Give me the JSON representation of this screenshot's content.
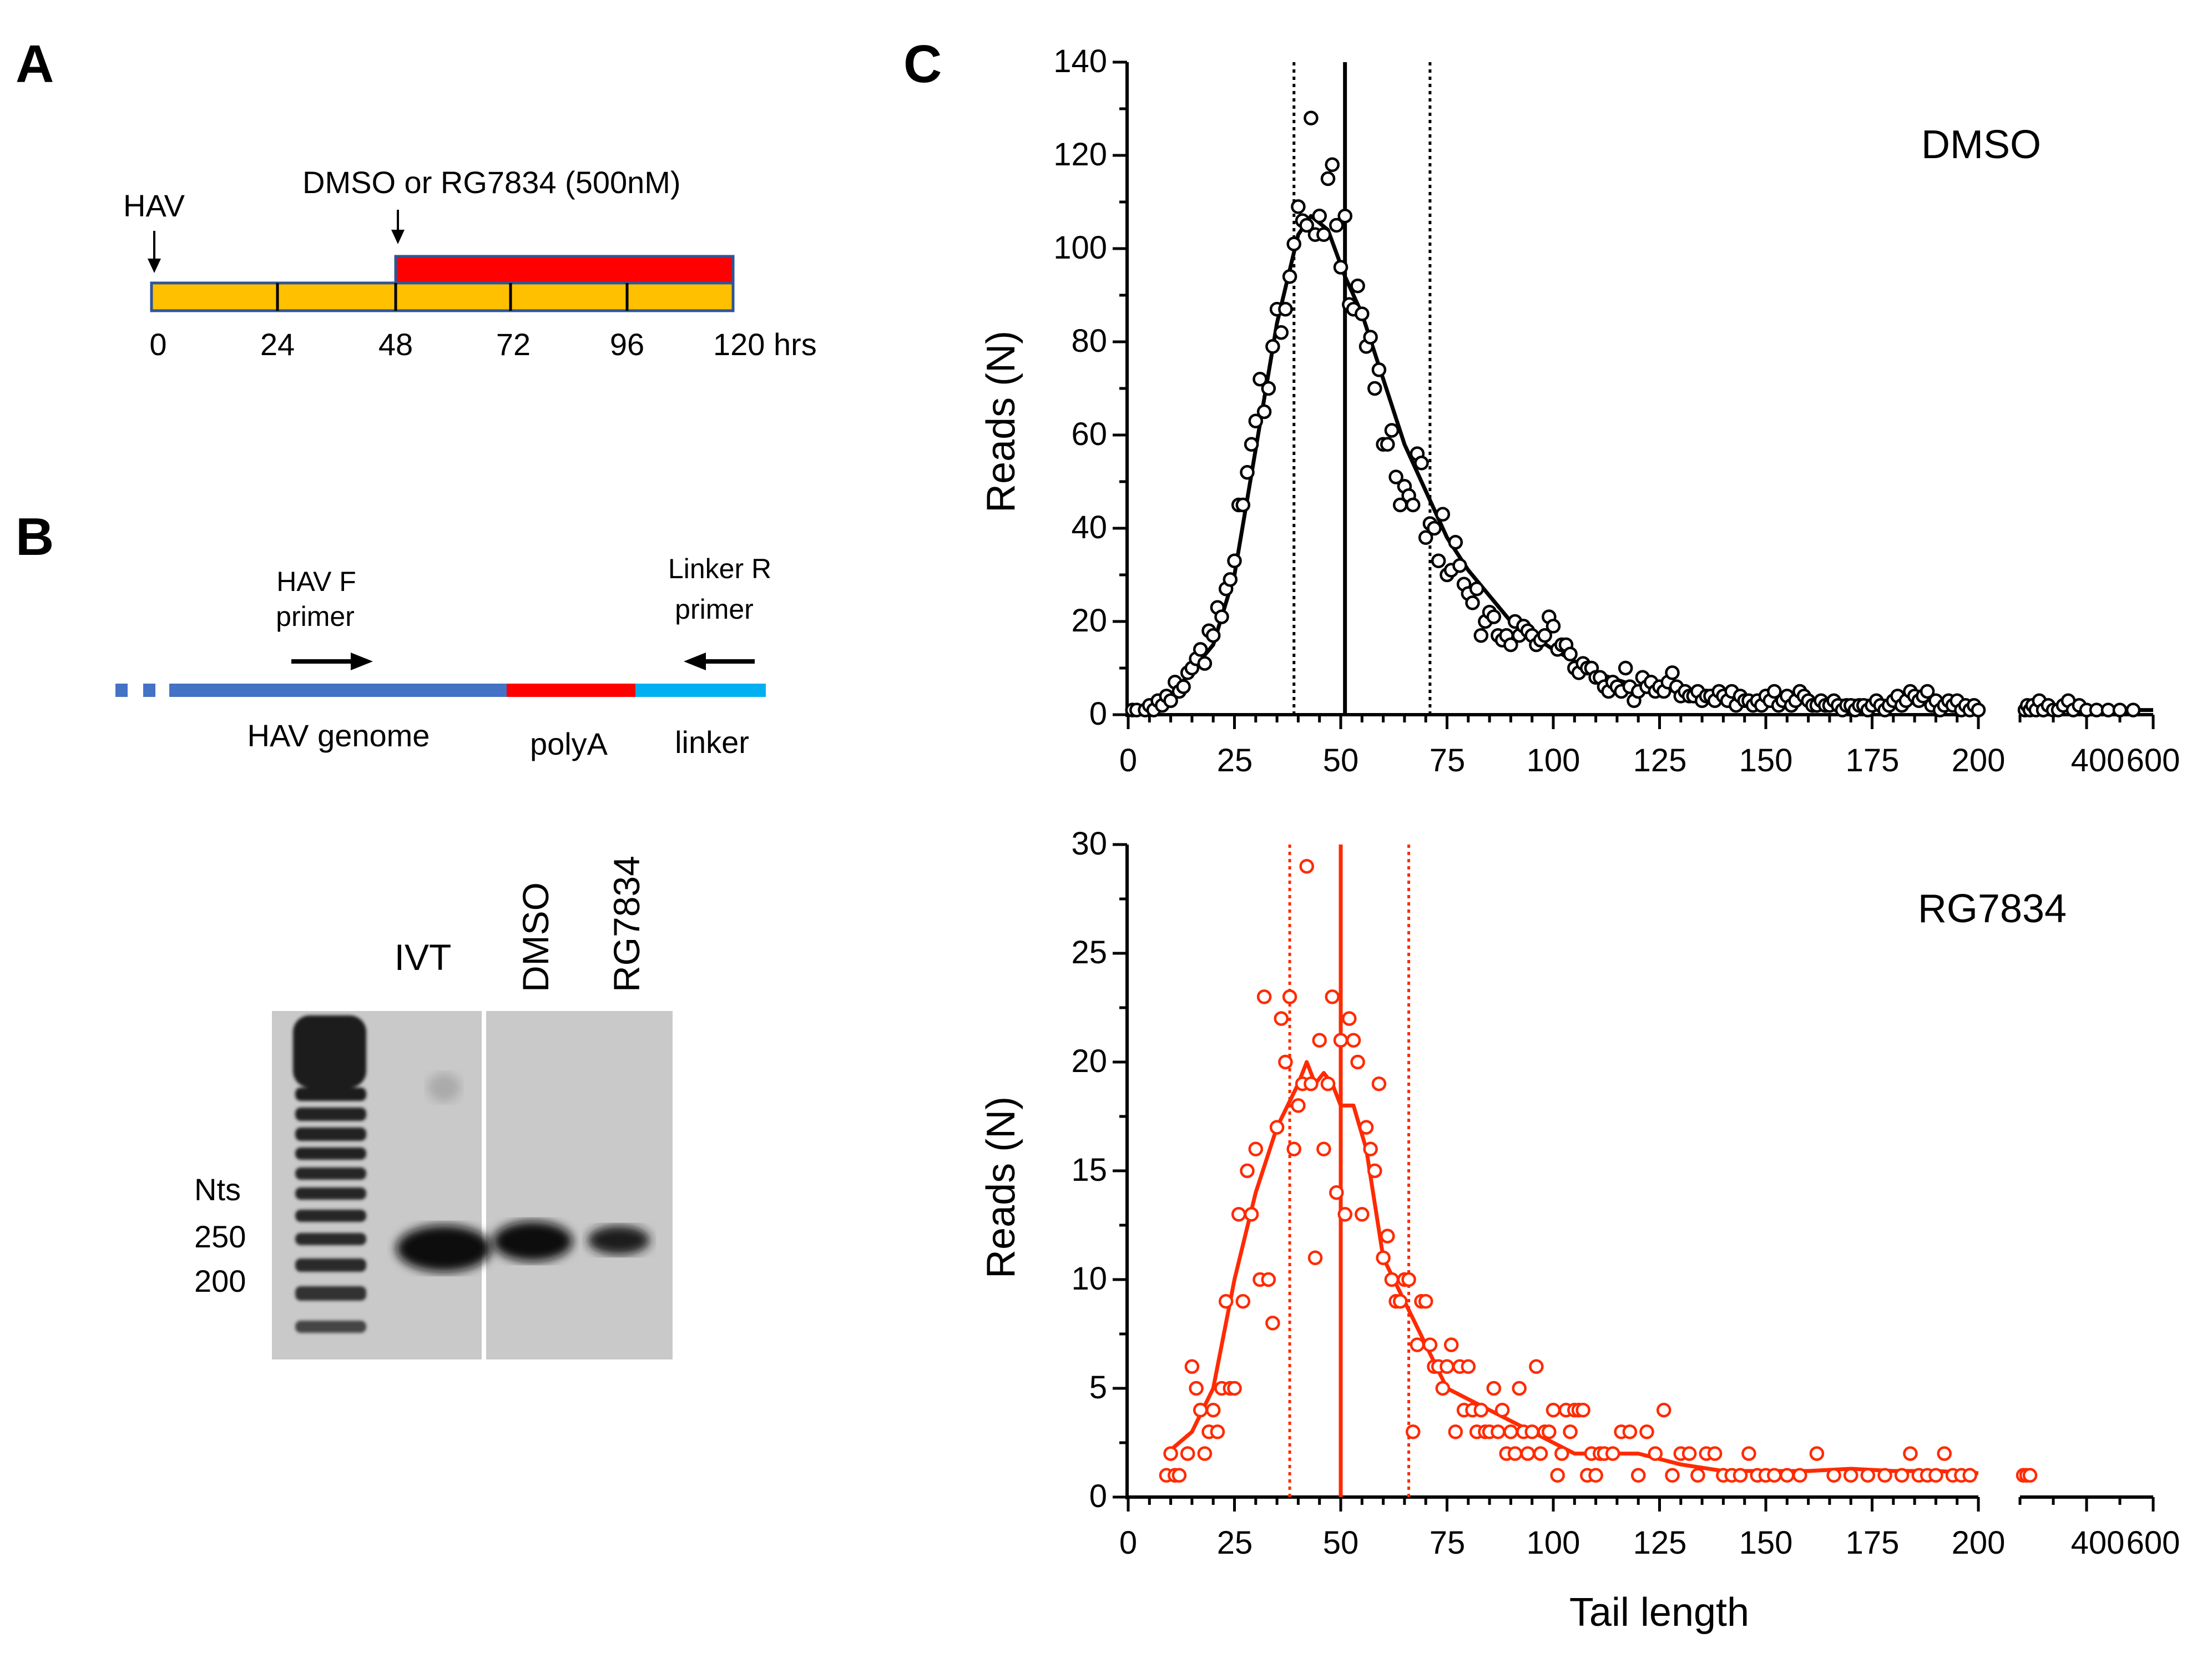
{
  "panels": {
    "a": "A",
    "b": "B",
    "c": "C"
  },
  "panel_a": {
    "hav_label": "HAV",
    "treatment_label": "DMSO or RG7834 (500nM)",
    "time_ticks": [
      "0",
      "24",
      "48",
      "72",
      "96"
    ],
    "time_end_label": "120 hrs",
    "time_values": [
      0,
      24,
      48,
      72,
      96,
      120
    ],
    "treatment_start_hr": 48,
    "colors": {
      "infection": "#FFC000",
      "treatment": "#FF0000",
      "frame": "#2F5597"
    }
  },
  "panel_b": {
    "hav_f_primer": [
      "HAV F",
      "primer"
    ],
    "linker_r_primer": [
      "Linker R",
      "primer"
    ],
    "segments": [
      "HAV genome",
      "polyA",
      "linker"
    ],
    "colors": {
      "genome": "#4472C4",
      "polya": "#FF0000",
      "linker": "#00B0F0"
    },
    "gel": {
      "lanes": [
        "IVT",
        "DMSO",
        "RG7834"
      ],
      "size_title": "Nts",
      "size_markers": [
        "250",
        "200"
      ]
    }
  },
  "chart_data": [
    {
      "type": "scatter",
      "title": "DMSO",
      "xlabel": "",
      "ylabel": "Reads (N)",
      "color": "#000000",
      "xlim": [
        0,
        200
      ],
      "xlim_break": [
        200,
        600
      ],
      "ylim": [
        0,
        140
      ],
      "x_ticks": [
        "0",
        "25",
        "50",
        "75",
        "100",
        "125",
        "150",
        "175",
        "200"
      ],
      "x_break_ticks": [
        "400",
        "600"
      ],
      "y_ticks": [
        "0",
        "20",
        "40",
        "60",
        "80",
        "100",
        "120",
        "140"
      ],
      "median": 51,
      "quartiles": [
        39,
        71
      ],
      "x": [
        1,
        2,
        4,
        5,
        6,
        7,
        8,
        9,
        10,
        11,
        12,
        13,
        14,
        15,
        16,
        17,
        18,
        19,
        20,
        21,
        22,
        23,
        24,
        25,
        26,
        27,
        28,
        29,
        30,
        31,
        32,
        33,
        34,
        35,
        36,
        37,
        38,
        39,
        40,
        41,
        42,
        43,
        44,
        45,
        46,
        47,
        48,
        49,
        50,
        51,
        52,
        53,
        54,
        55,
        56,
        57,
        58,
        59,
        60,
        61,
        62,
        63,
        64,
        65,
        66,
        67,
        68,
        69,
        70,
        71,
        72,
        73,
        74,
        75,
        76,
        77,
        78,
        79,
        80,
        81,
        82,
        83,
        84,
        85,
        86,
        87,
        88,
        89,
        90,
        91,
        92,
        93,
        94,
        95,
        96,
        97,
        98,
        99,
        100,
        101,
        102,
        103,
        104,
        105,
        106,
        107,
        108,
        109,
        110,
        111,
        112,
        113,
        114,
        115,
        116,
        117,
        118,
        119,
        120,
        121,
        122,
        123,
        124,
        125,
        126,
        127,
        128,
        129,
        130,
        131,
        132,
        133,
        134,
        135,
        136,
        137,
        138,
        139,
        140,
        141,
        142,
        143,
        144,
        145,
        146,
        147,
        148,
        149,
        150,
        151,
        152,
        153,
        154,
        155,
        156,
        157,
        158,
        159,
        160,
        161,
        162,
        163,
        164,
        165,
        166,
        167,
        168,
        169,
        170,
        171,
        172,
        173,
        174,
        175,
        176,
        177,
        178,
        179,
        180,
        181,
        182,
        183,
        184,
        185,
        186,
        187,
        188,
        189,
        190,
        191,
        192,
        193,
        194,
        195,
        196,
        197,
        198,
        199,
        200
      ],
      "y": [
        1,
        1,
        1,
        2,
        1,
        3,
        2,
        4,
        3,
        7,
        5,
        6,
        9,
        10,
        12,
        14,
        11,
        18,
        17,
        23,
        21,
        27,
        29,
        33,
        45,
        45,
        52,
        58,
        63,
        72,
        65,
        70,
        79,
        87,
        82,
        87,
        94,
        101,
        109,
        106,
        105,
        128,
        103,
        107,
        103,
        115,
        118,
        105,
        96,
        107,
        88,
        87,
        92,
        86,
        79,
        81,
        70,
        74,
        58,
        58,
        61,
        51,
        45,
        49,
        47,
        45,
        56,
        54,
        38,
        41,
        40,
        33,
        43,
        30,
        31,
        37,
        32,
        28,
        26,
        24,
        27,
        17,
        20,
        22,
        21,
        17,
        16,
        17,
        15,
        20,
        17,
        19,
        18,
        17,
        15,
        16,
        17,
        21,
        19,
        14,
        15,
        15,
        13,
        10,
        9,
        11,
        10,
        10,
        8,
        8,
        6,
        5,
        7,
        6,
        5,
        10,
        6,
        3,
        5,
        8,
        6,
        7,
        5,
        6,
        5,
        7,
        9,
        6,
        4,
        5,
        4,
        4,
        5,
        3,
        4,
        4,
        3,
        5,
        4,
        3,
        5,
        2,
        4,
        3,
        3,
        2,
        3,
        2,
        4,
        3,
        5,
        2,
        3,
        4,
        2,
        3,
        5,
        4,
        3,
        2,
        2,
        3,
        2,
        2,
        3,
        2,
        1,
        2,
        2,
        1,
        2,
        2,
        1,
        2,
        3,
        2,
        1,
        2,
        3,
        4,
        2,
        3,
        5,
        4,
        3,
        4,
        5,
        2,
        3,
        1,
        2,
        3,
        2,
        3,
        1,
        2,
        1,
        2,
        1
      ],
      "x_break": [
        215,
        222,
        230,
        238,
        248,
        258,
        270,
        285,
        300,
        315,
        330,
        345,
        360,
        378,
        400,
        430,
        465,
        500,
        540
      ],
      "y_break": [
        1,
        2,
        1,
        2,
        1,
        3,
        1,
        2,
        1,
        1,
        2,
        3,
        1,
        2,
        1,
        1,
        1,
        1,
        1
      ],
      "fit_x": [
        0,
        10,
        20,
        25,
        30,
        35,
        40,
        43,
        47,
        51,
        55,
        60,
        65,
        70,
        75,
        80,
        90,
        100,
        110,
        120,
        130,
        140,
        150,
        160,
        170,
        180,
        190,
        200
      ],
      "fit_y": [
        0,
        4,
        15,
        30,
        57,
        84,
        103,
        107,
        104,
        94,
        86,
        72,
        58,
        48,
        38,
        31,
        20,
        14,
        9,
        6,
        5,
        4,
        3,
        3,
        3,
        3,
        2,
        1
      ],
      "fit_x_break": [
        210,
        600
      ],
      "fit_y_break": [
        1,
        1
      ]
    },
    {
      "type": "scatter",
      "title": "RG7834",
      "xlabel": "Tail length",
      "ylabel": "Reads (N)",
      "color": "#FF2A00",
      "xlim": [
        0,
        200
      ],
      "xlim_break": [
        200,
        600
      ],
      "ylim": [
        0,
        30
      ],
      "x_ticks": [
        "0",
        "25",
        "50",
        "75",
        "100",
        "125",
        "150",
        "175",
        "200"
      ],
      "x_break_ticks": [
        "400",
        "600"
      ],
      "y_ticks": [
        "0",
        "5",
        "10",
        "15",
        "20",
        "25",
        "30"
      ],
      "median": 50,
      "quartiles": [
        38,
        66
      ],
      "x": [
        9,
        10,
        11,
        12,
        14,
        15,
        16,
        17,
        18,
        19,
        20,
        21,
        22,
        23,
        24,
        25,
        26,
        27,
        28,
        29,
        30,
        31,
        32,
        33,
        34,
        35,
        36,
        37,
        38,
        39,
        40,
        41,
        42,
        43,
        44,
        45,
        46,
        47,
        48,
        49,
        50,
        51,
        52,
        53,
        54,
        55,
        56,
        57,
        58,
        59,
        60,
        61,
        62,
        63,
        64,
        65,
        66,
        67,
        68,
        69,
        70,
        71,
        72,
        73,
        74,
        75,
        76,
        77,
        78,
        79,
        80,
        81,
        82,
        83,
        84,
        85,
        86,
        87,
        88,
        89,
        90,
        91,
        92,
        93,
        94,
        95,
        96,
        97,
        98,
        99,
        100,
        101,
        102,
        103,
        104,
        105,
        106,
        107,
        108,
        109,
        110,
        111,
        112,
        114,
        116,
        118,
        120,
        122,
        124,
        126,
        128,
        130,
        132,
        134,
        136,
        138,
        140,
        142,
        144,
        146,
        148,
        150,
        152,
        155,
        158,
        162,
        166,
        170,
        174,
        178,
        182,
        184,
        186,
        188,
        190,
        192,
        194,
        196,
        198
      ],
      "y": [
        1,
        2,
        1,
        1,
        2,
        6,
        5,
        4,
        2,
        3,
        4,
        3,
        5,
        9,
        5,
        5,
        13,
        9,
        15,
        13,
        16,
        10,
        23,
        10,
        8,
        17,
        22,
        20,
        23,
        16,
        18,
        19,
        29,
        19,
        11,
        21,
        16,
        19,
        23,
        14,
        21,
        13,
        22,
        21,
        20,
        13,
        17,
        16,
        15,
        19,
        11,
        12,
        10,
        9,
        9,
        10,
        10,
        3,
        7,
        9,
        9,
        7,
        6,
        6,
        5,
        6,
        7,
        3,
        6,
        4,
        6,
        4,
        3,
        4,
        3,
        3,
        5,
        3,
        4,
        2,
        3,
        2,
        5,
        3,
        2,
        3,
        6,
        2,
        3,
        3,
        4,
        1,
        2,
        4,
        3,
        4,
        4,
        4,
        1,
        2,
        1,
        2,
        2,
        2,
        3,
        3,
        1,
        3,
        2,
        4,
        1,
        2,
        2,
        1,
        2,
        2,
        1,
        1,
        1,
        2,
        1,
        1,
        1,
        1,
        1,
        2,
        1,
        1,
        1,
        1,
        1,
        2,
        1,
        1,
        1,
        2,
        1,
        1,
        1
      ],
      "x_break": [
        210,
        220,
        230
      ],
      "y_break": [
        1,
        1,
        1
      ],
      "fit_x": [
        9,
        15,
        20,
        25,
        30,
        35,
        40,
        42,
        44,
        46,
        48,
        50,
        53,
        56,
        60,
        65,
        70,
        75,
        80,
        85,
        90,
        95,
        100,
        105,
        110,
        120,
        130,
        140,
        150,
        160,
        170,
        180,
        190,
        200
      ],
      "fit_y": [
        2,
        3,
        5,
        10,
        14,
        17,
        19,
        20,
        19,
        19.5,
        19,
        18,
        18,
        16,
        11,
        9,
        7,
        5,
        4.5,
        4,
        3.5,
        3,
        2.5,
        2,
        2,
        2,
        1.5,
        1.2,
        1.2,
        1.2,
        1.3,
        1.2,
        1.2,
        1.1
      ],
      "fit_x_break": [],
      "fit_y_break": []
    }
  ]
}
